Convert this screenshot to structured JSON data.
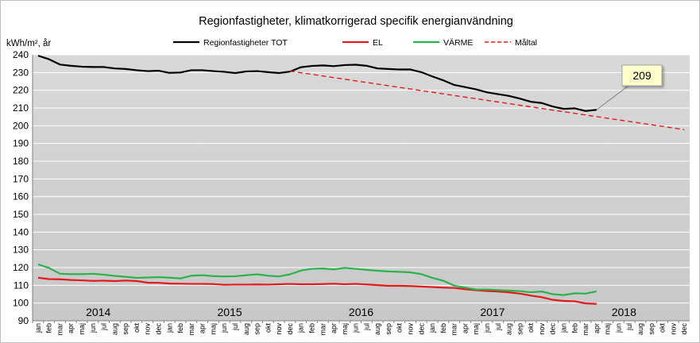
{
  "chart_data": {
    "type": "line",
    "title": "Regionfastigheter, klimatkorrigerad specifik energianvändning",
    "ylabel": "kWh/m², år",
    "ylim": [
      90,
      240
    ],
    "yticks": [
      90,
      100,
      110,
      120,
      130,
      140,
      150,
      160,
      170,
      180,
      190,
      200,
      210,
      220,
      230,
      240
    ],
    "grid": true,
    "legend_placement": "top",
    "x_month_labels": [
      "jan",
      "feb",
      "mar",
      "apr",
      "maj",
      "jun",
      "jul",
      "aug",
      "sep",
      "okt",
      "nov",
      "dec"
    ],
    "years": [
      "2014",
      "2015",
      "2016",
      "2017",
      "2018"
    ],
    "series": [
      {
        "name": "Regionfastigheter TOT",
        "color": "#000000",
        "dash": "solid",
        "values": [
          239.5,
          237.5,
          234.5,
          233.8,
          233.3,
          233.1,
          233.1,
          232.3,
          232.0,
          231.3,
          230.8,
          231.0,
          229.8,
          230.0,
          231.3,
          231.3,
          230.8,
          230.4,
          229.7,
          230.6,
          230.8,
          230.2,
          229.7,
          230.5,
          233.0,
          233.7,
          234.0,
          233.6,
          234.2,
          234.4,
          233.8,
          232.3,
          232.0,
          231.7,
          231.7,
          230.2,
          227.8,
          225.6,
          223.0,
          221.8,
          220.5,
          218.8,
          217.8,
          216.8,
          215.3,
          213.5,
          212.8,
          210.8,
          209.5,
          209.8,
          208.3,
          209.0
        ]
      },
      {
        "name": "EL",
        "color": "#e31a1c",
        "dash": "solid",
        "values": [
          114.3,
          113.5,
          113.4,
          113.0,
          112.8,
          112.5,
          112.6,
          112.4,
          112.7,
          112.4,
          111.5,
          111.4,
          111.0,
          110.9,
          110.8,
          110.8,
          110.7,
          110.3,
          110.4,
          110.4,
          110.5,
          110.4,
          110.6,
          110.8,
          110.6,
          110.6,
          110.7,
          110.9,
          110.6,
          110.8,
          110.5,
          110.1,
          109.7,
          109.7,
          109.6,
          109.3,
          109.0,
          108.7,
          108.5,
          107.8,
          107.2,
          106.8,
          106.5,
          106.0,
          105.3,
          104.2,
          103.3,
          101.8,
          101.2,
          101.0,
          99.8,
          99.5
        ]
      },
      {
        "name": "VÄRME",
        "color": "#2bb24c",
        "dash": "solid",
        "values": [
          121.8,
          119.8,
          116.5,
          116.3,
          116.3,
          116.5,
          116.0,
          115.3,
          114.8,
          114.2,
          114.4,
          114.6,
          114.3,
          113.9,
          115.4,
          115.7,
          115.2,
          115.0,
          115.1,
          115.7,
          116.2,
          115.4,
          115.0,
          116.2,
          118.3,
          119.3,
          119.5,
          119.0,
          119.8,
          119.3,
          118.7,
          118.2,
          117.8,
          117.6,
          117.3,
          116.3,
          114.2,
          112.6,
          109.8,
          108.7,
          107.6,
          107.6,
          107.3,
          107.0,
          106.7,
          106.1,
          106.5,
          105.0,
          104.5,
          105.5,
          105.3,
          106.6
        ]
      },
      {
        "name": "Måltal",
        "color": "#e31a1c",
        "dash": "dashed",
        "start_index": 23,
        "start_value": 230.8,
        "end_index": 59,
        "end_value": 197.8
      }
    ],
    "annotations": [
      {
        "text": "209",
        "point_index": 51,
        "point_value": 209.0
      }
    ]
  }
}
